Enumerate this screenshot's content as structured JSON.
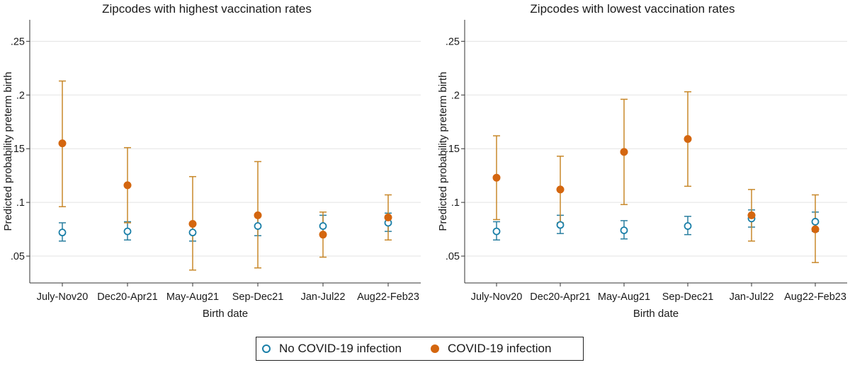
{
  "colors": {
    "no_covid": "#1a7fa8",
    "covid": "#d4660f",
    "covid_ci": "#c8882a",
    "no_covid_ci": "#2a7fa0",
    "grid": "#e3e3e3"
  },
  "legend": {
    "no_covid_label": "No COVID-19 infection",
    "covid_label": "COVID-19 infection"
  },
  "chart_data": [
    {
      "type": "scatter",
      "title": "Zipcodes with highest vaccination rates",
      "xlabel": "Birth date",
      "ylabel": "Predicted probability preterm birth",
      "ylim": [
        0.025,
        0.27
      ],
      "yticks": [
        ".05",
        ".1",
        ".15",
        ".2",
        ".25"
      ],
      "ytick_values": [
        0.05,
        0.1,
        0.15,
        0.2,
        0.25
      ],
      "grid": true,
      "categories": [
        "July-Nov20",
        "Dec20-Apr21",
        "May-Aug21",
        "Sep-Dec21",
        "Jan-Jul22",
        "Aug22-Feb23"
      ],
      "series": [
        {
          "name": "No COVID-19 infection",
          "marker": "hollow-circle",
          "values": [
            0.072,
            0.073,
            0.072,
            0.078,
            0.078,
            0.081
          ],
          "ci_low": [
            0.064,
            0.065,
            0.064,
            0.069,
            0.069,
            0.073
          ],
          "ci_high": [
            0.081,
            0.082,
            0.081,
            0.088,
            0.088,
            0.09
          ]
        },
        {
          "name": "COVID-19 infection",
          "marker": "filled-circle",
          "values": [
            0.155,
            0.116,
            0.08,
            0.088,
            0.07,
            0.086
          ],
          "ci_low": [
            0.096,
            0.081,
            0.037,
            0.039,
            0.049,
            0.065
          ],
          "ci_high": [
            0.213,
            0.151,
            0.124,
            0.138,
            0.091,
            0.107
          ]
        }
      ]
    },
    {
      "type": "scatter",
      "title": "Zipcodes with lowest vaccination rates",
      "xlabel": "Birth date",
      "ylabel": "Predicted probability preterm birth",
      "ylim": [
        0.025,
        0.27
      ],
      "yticks": [
        ".05",
        ".1",
        ".15",
        ".2",
        ".25"
      ],
      "ytick_values": [
        0.05,
        0.1,
        0.15,
        0.2,
        0.25
      ],
      "grid": true,
      "categories": [
        "July-Nov20",
        "Dec20-Apr21",
        "May-Aug21",
        "Sep-Dec21",
        "Jan-Jul22",
        "Aug22-Feb23"
      ],
      "series": [
        {
          "name": "No COVID-19 infection",
          "marker": "hollow-circle",
          "values": [
            0.073,
            0.079,
            0.074,
            0.078,
            0.085,
            0.082
          ],
          "ci_low": [
            0.065,
            0.071,
            0.066,
            0.07,
            0.077,
            0.073
          ],
          "ci_high": [
            0.082,
            0.088,
            0.083,
            0.087,
            0.093,
            0.091
          ]
        },
        {
          "name": "COVID-19 infection",
          "marker": "filled-circle",
          "values": [
            0.123,
            0.112,
            0.147,
            0.159,
            0.088,
            0.075
          ],
          "ci_low": [
            0.084,
            0.081,
            0.098,
            0.115,
            0.064,
            0.044
          ],
          "ci_high": [
            0.162,
            0.143,
            0.196,
            0.203,
            0.112,
            0.107
          ]
        }
      ]
    }
  ]
}
